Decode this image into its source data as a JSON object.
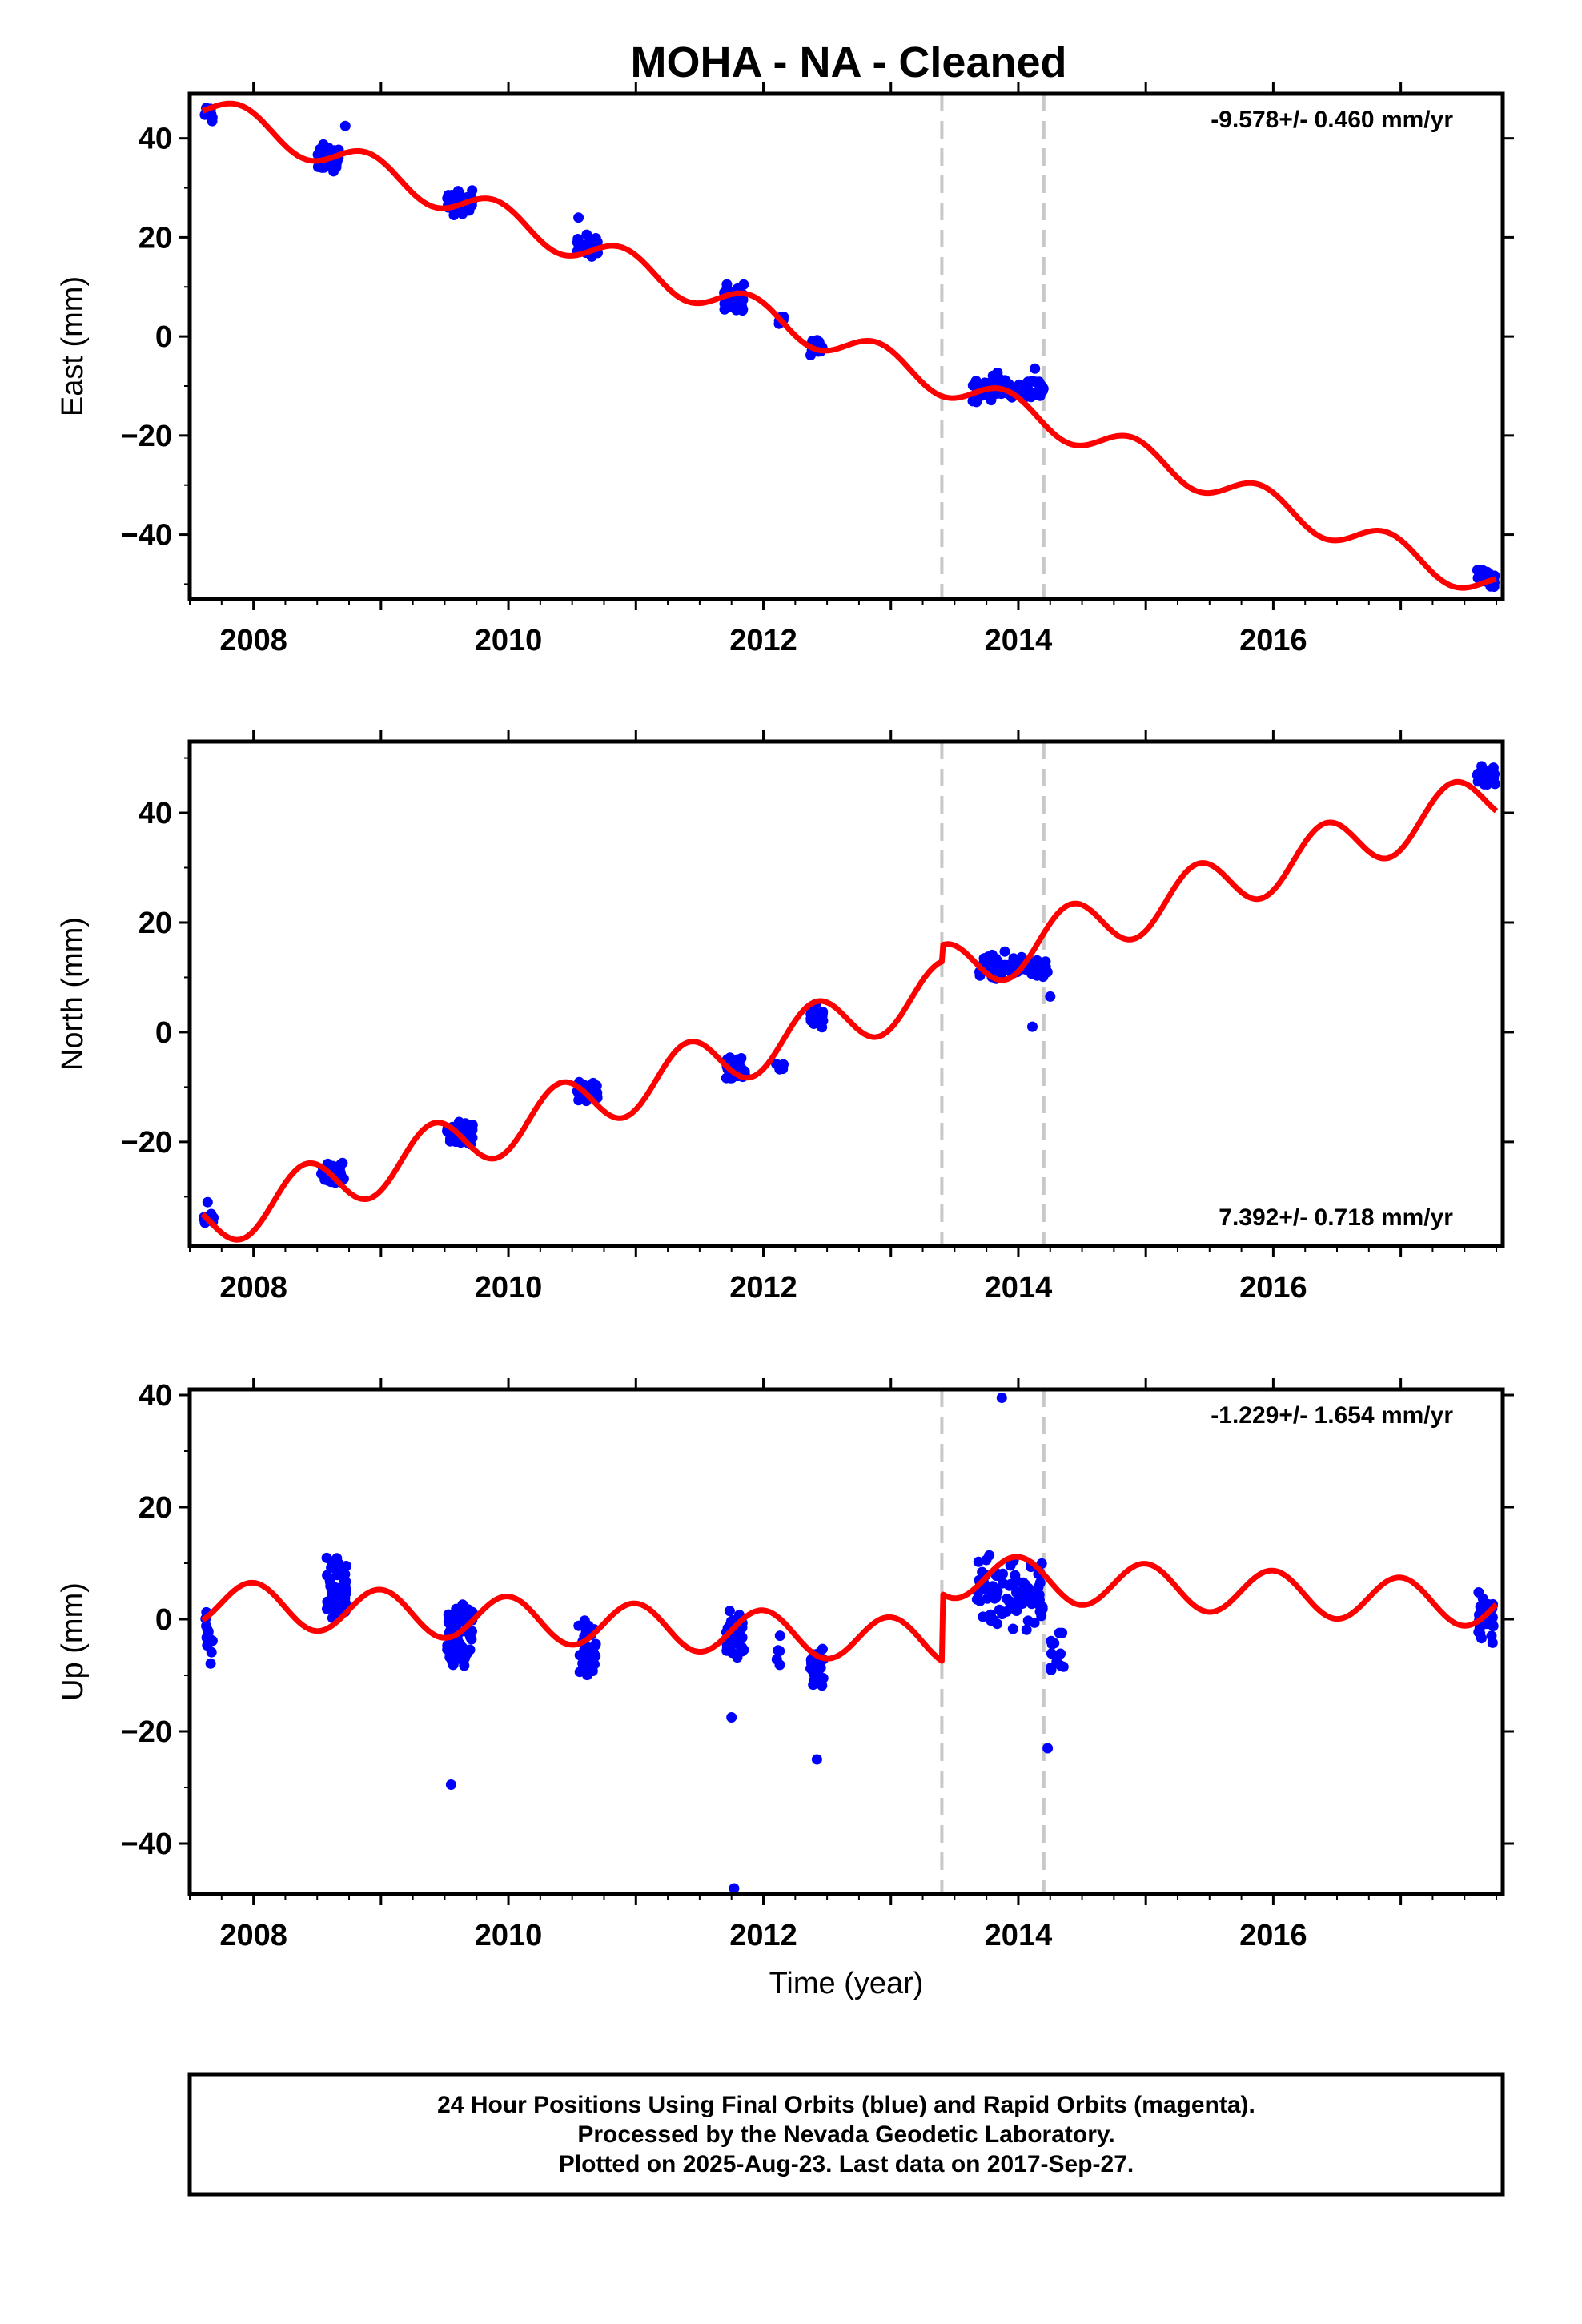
{
  "title": "MOHA  - NA - Cleaned",
  "caption": {
    "lines": [
      "24 Hour Positions Using Final Orbits (blue) and Rapid Orbits (magenta).",
      "Processed by the Nevada Geodetic Laboratory.",
      "Plotted on 2025-Aug-23. Last data on 2017-Sep-27."
    ]
  },
  "colors": {
    "data": "#0000ff",
    "model": "#ff0000",
    "event_line": "#c8c8c8",
    "frame": "#000000"
  },
  "chart_data": [
    {
      "type": "scatter",
      "component": "East",
      "ylabel": "East (mm)",
      "xlabel": "",
      "rate_text": "-9.578+/- 0.460 mm/yr",
      "xlim": [
        2007.5,
        2017.8
      ],
      "ylim": [
        -53,
        49
      ],
      "yticks": [
        -40,
        -20,
        0,
        20,
        40
      ],
      "ytick_labels": [
        "−40",
        "−20",
        "0",
        "20",
        "40"
      ],
      "xticks": [
        2008,
        2010,
        2012,
        2014,
        2016
      ],
      "xtick_labels": [
        "2008",
        "2010",
        "2012",
        "2014",
        "2016"
      ],
      "event_lines": [
        2013.4,
        2014.2
      ],
      "model": {
        "offset": 46.5,
        "t0": 2007.6,
        "rate": -9.578,
        "amp": 3.0,
        "phase": 2.2,
        "step_at": 2013.4,
        "step": 0
      },
      "clusters": [
        {
          "t": 2007.65,
          "dt": 0.04,
          "y": 45.0,
          "spread": 1.5,
          "n": 10
        },
        {
          "t": 2008.58,
          "dt": 0.09,
          "y": 36.0,
          "spread": 2.0,
          "n": 45
        },
        {
          "t": 2009.62,
          "dt": 0.1,
          "y": 27.0,
          "spread": 1.8,
          "n": 55
        },
        {
          "t": 2010.62,
          "dt": 0.08,
          "y": 18.0,
          "spread": 1.8,
          "n": 35
        },
        {
          "t": 2011.77,
          "dt": 0.08,
          "y": 8.0,
          "spread": 2.0,
          "n": 40
        },
        {
          "t": 2012.13,
          "dt": 0.03,
          "y": 3.5,
          "spread": 1.0,
          "n": 5
        },
        {
          "t": 2012.42,
          "dt": 0.05,
          "y": -2.0,
          "spread": 1.8,
          "n": 25
        },
        {
          "t": 2013.92,
          "dt": 0.28,
          "y": -10.5,
          "spread": 2.0,
          "n": 90
        },
        {
          "t": 2017.67,
          "dt": 0.07,
          "y": -48.5,
          "spread": 1.3,
          "n": 35
        }
      ],
      "outliers": [
        {
          "t": 2008.72,
          "y": 42.5
        },
        {
          "t": 2010.55,
          "y": 24.0
        },
        {
          "t": 2014.13,
          "y": -6.5
        }
      ]
    },
    {
      "type": "scatter",
      "component": "North",
      "ylabel": "North (mm)",
      "xlabel": "",
      "rate_text": "7.392+/- 0.718 mm/yr",
      "xlim": [
        2007.5,
        2017.8
      ],
      "ylim": [
        -39,
        53
      ],
      "yticks": [
        -20,
        0,
        20,
        40
      ],
      "ytick_labels": [
        "−20",
        "0",
        "20",
        "40"
      ],
      "xticks": [
        2008,
        2010,
        2012,
        2014,
        2016
      ],
      "xtick_labels": [
        "2008",
        "2010",
        "2012",
        "2014",
        "2016"
      ],
      "event_lines": [
        2013.4,
        2014.2
      ],
      "model": {
        "offset": -35.0,
        "t0": 2007.6,
        "rate": 7.392,
        "amp": 5.0,
        "phase": -1.0,
        "step_at": 2013.4,
        "step": 3.0
      },
      "clusters": [
        {
          "t": 2007.65,
          "dt": 0.04,
          "y": -34.0,
          "spread": 1.5,
          "n": 8
        },
        {
          "t": 2008.62,
          "dt": 0.09,
          "y": -25.5,
          "spread": 1.5,
          "n": 45
        },
        {
          "t": 2009.62,
          "dt": 0.1,
          "y": -18.5,
          "spread": 1.6,
          "n": 55
        },
        {
          "t": 2010.62,
          "dt": 0.08,
          "y": -11.0,
          "spread": 1.5,
          "n": 35
        },
        {
          "t": 2011.78,
          "dt": 0.08,
          "y": -7.0,
          "spread": 1.6,
          "n": 40
        },
        {
          "t": 2012.13,
          "dt": 0.03,
          "y": -6.5,
          "spread": 0.8,
          "n": 5
        },
        {
          "t": 2012.42,
          "dt": 0.05,
          "y": 2.5,
          "spread": 1.8,
          "n": 25
        },
        {
          "t": 2013.95,
          "dt": 0.28,
          "y": 12.0,
          "spread": 1.8,
          "n": 90
        },
        {
          "t": 2017.67,
          "dt": 0.07,
          "y": 46.5,
          "spread": 1.5,
          "n": 35
        }
      ],
      "outliers": [
        {
          "t": 2007.64,
          "y": -31.0
        },
        {
          "t": 2014.11,
          "y": 1.0
        },
        {
          "t": 2014.25,
          "y": 6.5
        }
      ]
    },
    {
      "type": "scatter",
      "component": "Up",
      "ylabel": "Up (mm)",
      "xlabel": "Time (year)",
      "rate_text": "-1.229+/- 1.654 mm/yr",
      "xlim": [
        2007.5,
        2017.8
      ],
      "ylim": [
        -49,
        41
      ],
      "yticks": [
        -40,
        -20,
        0,
        20,
        40
      ],
      "ytick_labels": [
        "−40",
        "−20",
        "0",
        "20",
        "40"
      ],
      "xticks": [
        2008,
        2010,
        2012,
        2014,
        2016
      ],
      "xtick_labels": [
        "2008",
        "2010",
        "2012",
        "2014",
        "2016"
      ],
      "event_lines": [
        2013.4,
        2014.2
      ],
      "model": {
        "offset": 3.0,
        "t0": 2007.6,
        "rate": -1.229,
        "amp": 4.0,
        "phase": 1.6,
        "step_at": 2013.4,
        "step": 12.0
      },
      "clusters": [
        {
          "t": 2007.65,
          "dt": 0.03,
          "y": -3.0,
          "spread": 3.5,
          "n": 12
        },
        {
          "t": 2008.65,
          "dt": 0.08,
          "y": 5.0,
          "spread": 4.0,
          "n": 55
        },
        {
          "t": 2009.62,
          "dt": 0.1,
          "y": -3.0,
          "spread": 4.5,
          "n": 70
        },
        {
          "t": 2010.62,
          "dt": 0.07,
          "y": -5.0,
          "spread": 3.5,
          "n": 40
        },
        {
          "t": 2011.78,
          "dt": 0.07,
          "y": -2.0,
          "spread": 4.0,
          "n": 45
        },
        {
          "t": 2012.12,
          "dt": 0.02,
          "y": -6.0,
          "spread": 3.0,
          "n": 5
        },
        {
          "t": 2012.42,
          "dt": 0.05,
          "y": -9.0,
          "spread": 4.0,
          "n": 30
        },
        {
          "t": 2013.93,
          "dt": 0.26,
          "y": 5.0,
          "spread": 5.5,
          "n": 90
        },
        {
          "t": 2014.3,
          "dt": 0.06,
          "y": -6.0,
          "spread": 4.0,
          "n": 12
        },
        {
          "t": 2017.67,
          "dt": 0.06,
          "y": 0.0,
          "spread": 3.5,
          "n": 40
        }
      ],
      "outliers": [
        {
          "t": 2009.55,
          "y": -29.5
        },
        {
          "t": 2011.77,
          "y": -48.0
        },
        {
          "t": 2012.42,
          "y": -25.0
        },
        {
          "t": 2013.87,
          "y": 39.5
        },
        {
          "t": 2014.23,
          "y": -23.0
        },
        {
          "t": 2011.75,
          "y": -17.5
        }
      ]
    }
  ]
}
